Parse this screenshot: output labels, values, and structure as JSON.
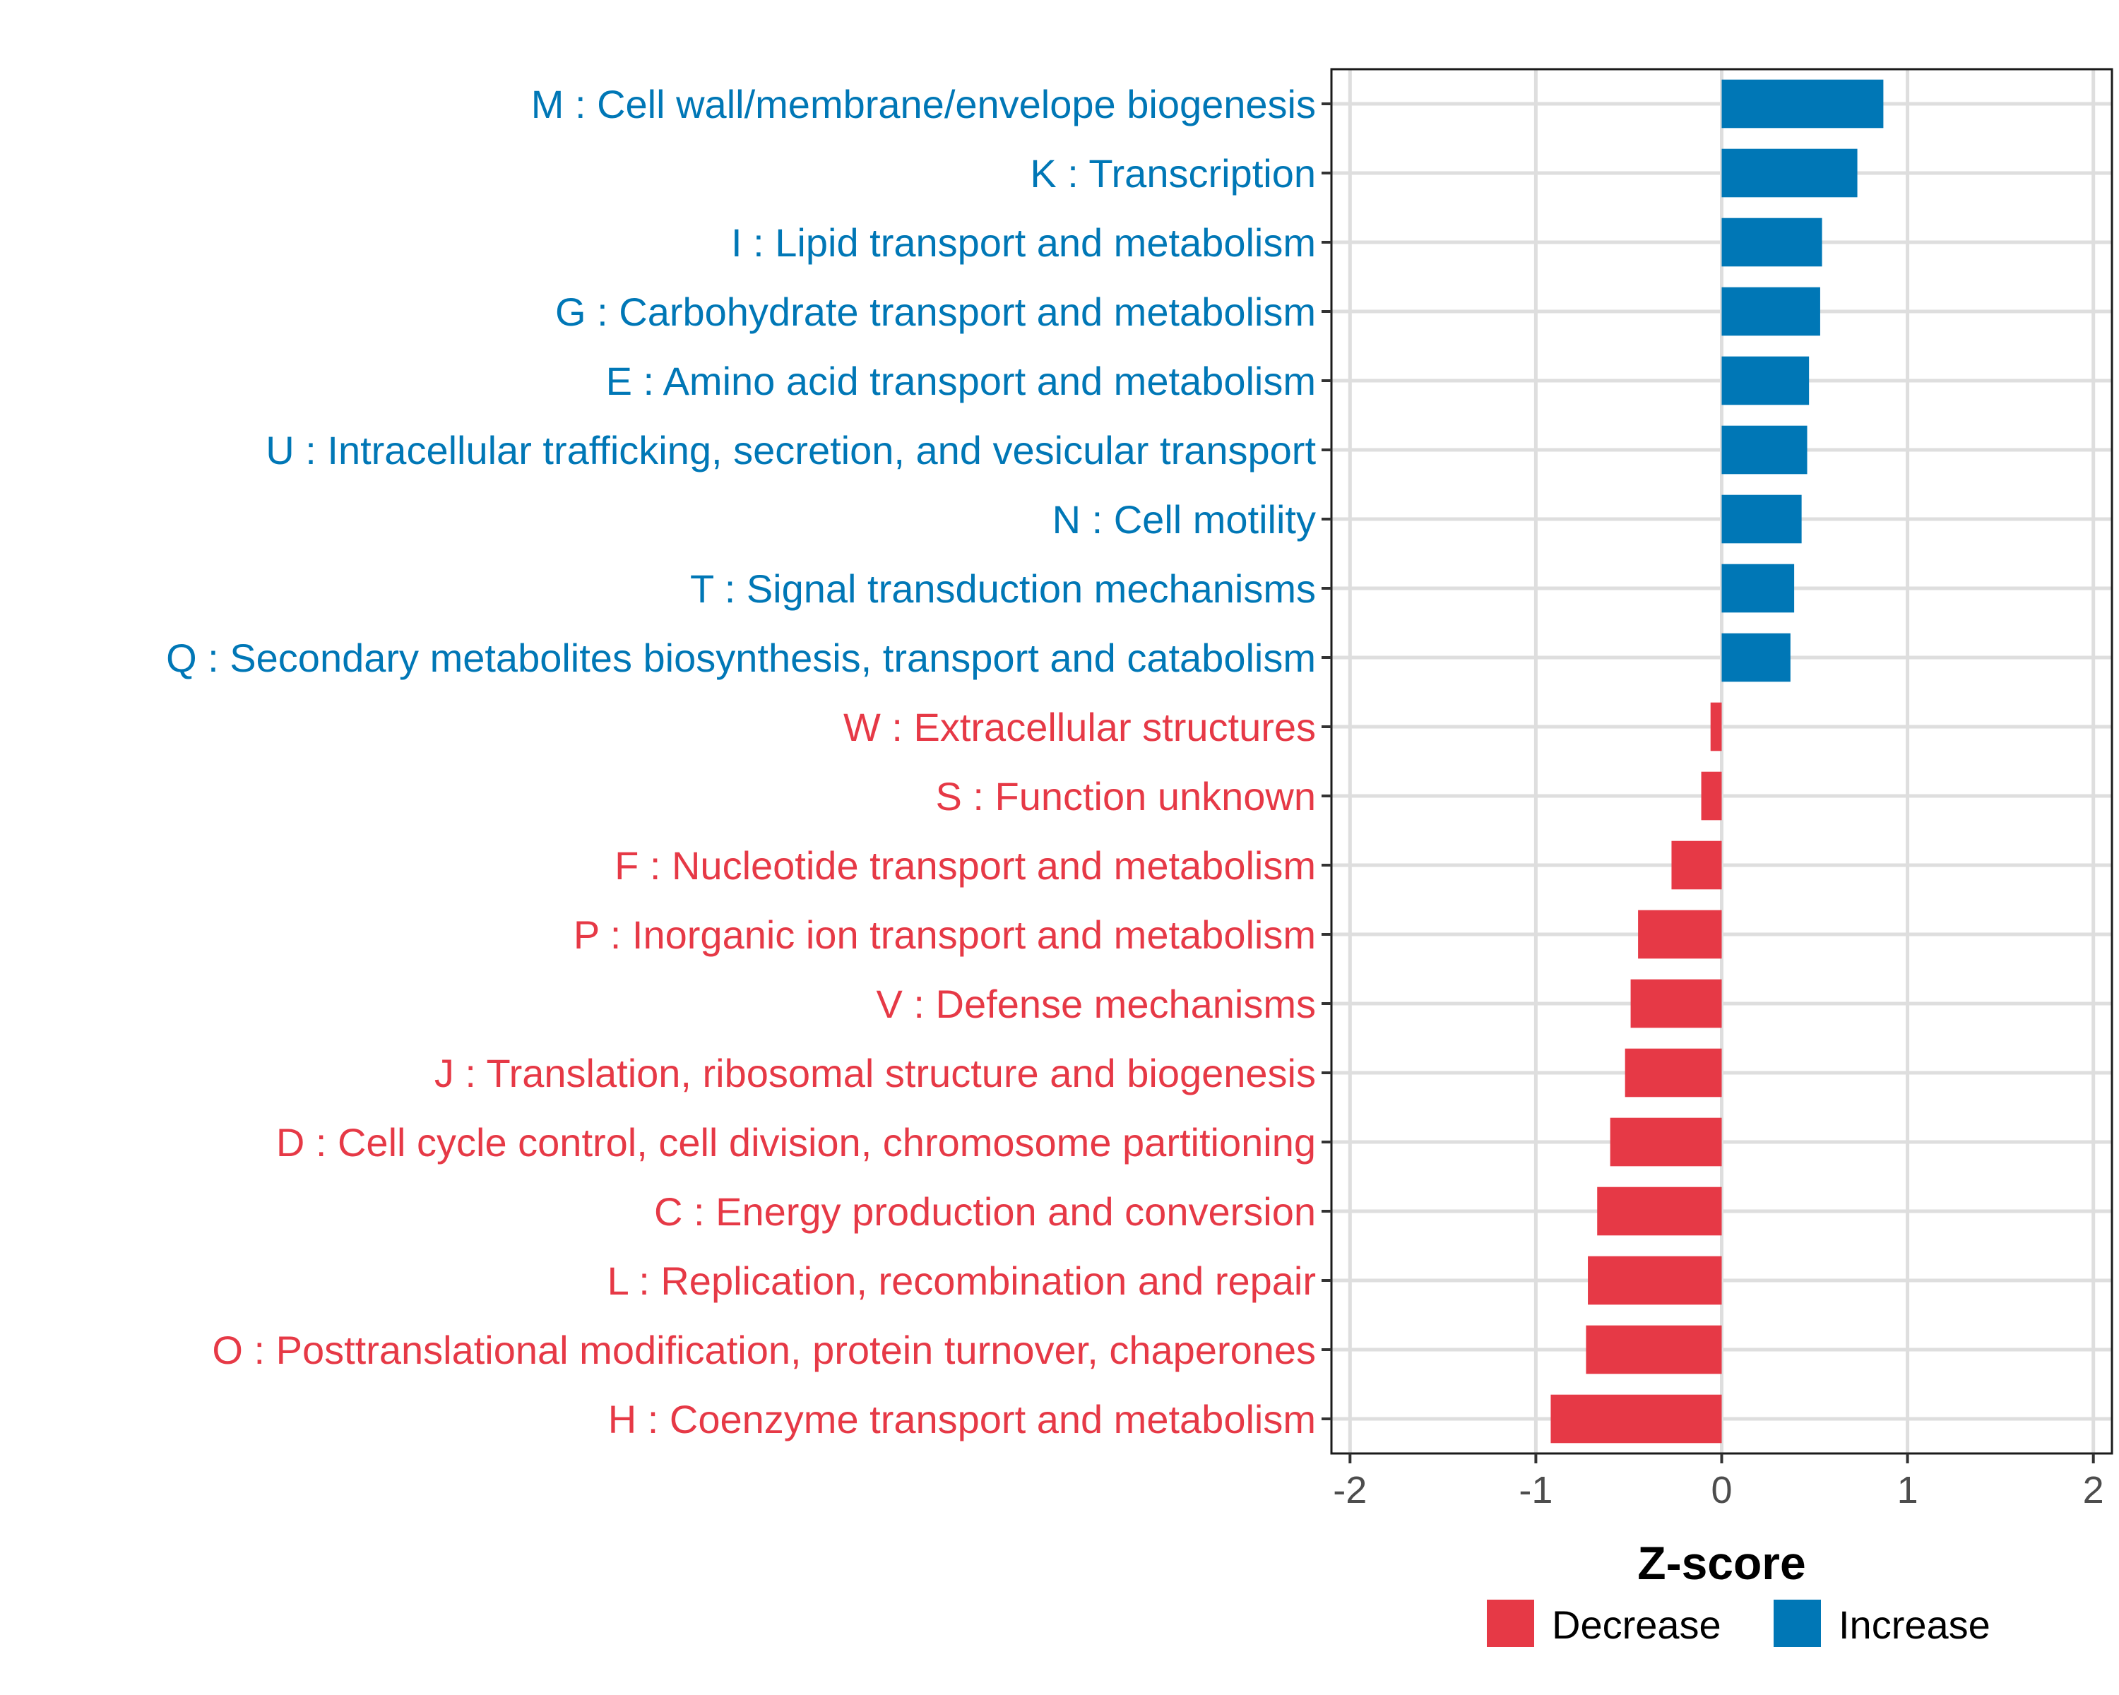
{
  "chart_data": {
    "type": "bar",
    "orientation": "horizontal",
    "xlabel": "Z-score",
    "ylabel": "",
    "xlim": [
      -2.1,
      2.1
    ],
    "x_ticks": [
      -2,
      -1,
      0,
      1,
      2
    ],
    "x_tick_labels": [
      "-2",
      "-1",
      "0",
      "1",
      "2"
    ],
    "grid": true,
    "legend_position": "bottom-right",
    "colors": {
      "Decrease": "#E63946",
      "Increase": "#0077B6"
    },
    "legend": [
      {
        "label": "Decrease",
        "color": "#E63946"
      },
      {
        "label": "Increase",
        "color": "#0077B6"
      }
    ],
    "categories": [
      "M : Cell wall/membrane/envelope biogenesis",
      "K : Transcription",
      "I : Lipid transport and metabolism",
      "G : Carbohydrate transport and metabolism",
      "E : Amino acid transport and metabolism",
      "U : Intracellular trafficking, secretion, and vesicular transport",
      "N : Cell motility",
      "T : Signal transduction mechanisms",
      "Q : Secondary metabolites biosynthesis, transport and catabolism",
      "W : Extracellular structures",
      "S : Function unknown",
      "F : Nucleotide transport and metabolism",
      "P : Inorganic ion transport and metabolism",
      "V : Defense mechanisms",
      "J : Translation, ribosomal structure and biogenesis",
      "D : Cell cycle control, cell division, chromosome partitioning",
      "C : Energy production and conversion",
      "L : Replication, recombination and repair",
      "O : Posttranslational modification, protein turnover, chaperones",
      "H : Coenzyme transport and metabolism"
    ],
    "values": [
      0.87,
      0.73,
      0.54,
      0.53,
      0.47,
      0.46,
      0.43,
      0.39,
      0.37,
      -0.06,
      -0.11,
      -0.27,
      -0.45,
      -0.49,
      -0.52,
      -0.6,
      -0.67,
      -0.72,
      -0.73,
      -0.92
    ],
    "groups": [
      "Increase",
      "Increase",
      "Increase",
      "Increase",
      "Increase",
      "Increase",
      "Increase",
      "Increase",
      "Increase",
      "Decrease",
      "Decrease",
      "Decrease",
      "Decrease",
      "Decrease",
      "Decrease",
      "Decrease",
      "Decrease",
      "Decrease",
      "Decrease",
      "Decrease"
    ]
  }
}
